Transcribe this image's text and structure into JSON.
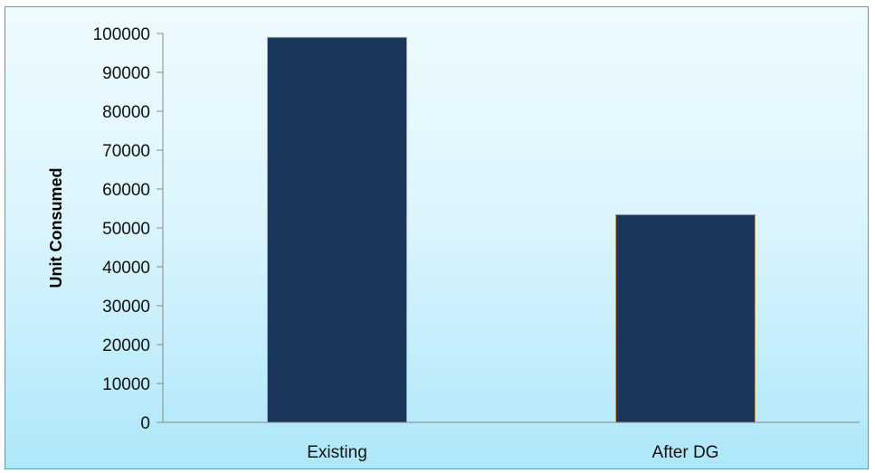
{
  "chart_data": {
    "type": "bar",
    "categories": [
      "Existing",
      "After DG"
    ],
    "series": [
      {
        "values": [
          99000,
          53400
        ]
      }
    ],
    "title": "",
    "xlabel": "",
    "ylabel": "Unit Consumed",
    "ylim": [
      0,
      100000
    ],
    "yticks": [
      0,
      10000,
      20000,
      30000,
      40000,
      50000,
      60000,
      70000,
      80000,
      90000,
      100000
    ],
    "grid": false,
    "legend": "none",
    "colors": {
      "bar": "#1b365d",
      "bar_edge": "#c8a070",
      "axis": "#888888"
    }
  }
}
